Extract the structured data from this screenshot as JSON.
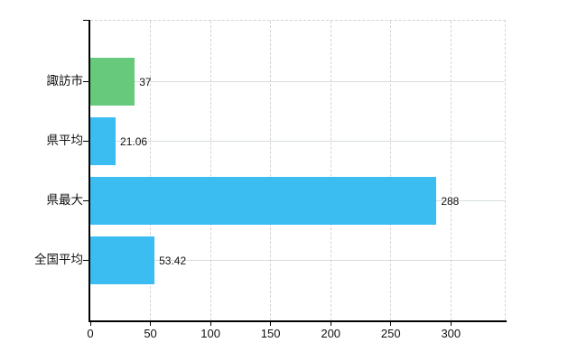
{
  "chart_data": {
    "type": "bar",
    "orientation": "horizontal",
    "title": "",
    "xlabel": "",
    "ylabel": "",
    "categories": [
      "諏訪市",
      "県平均",
      "県最大",
      "全国平均"
    ],
    "values": [
      37,
      21.06,
      288,
      53.42
    ],
    "value_labels": [
      "37",
      "21.06",
      "288",
      "53.42"
    ],
    "bar_colors": [
      "#67c97c",
      "#3bbdf2",
      "#3bbdf2",
      "#3bbdf2"
    ],
    "xlim": [
      0,
      345.6
    ],
    "x_ticks": [
      0,
      50,
      100,
      150,
      200,
      250,
      300
    ],
    "grid": true,
    "legend": false
  },
  "colors": {
    "background": "#ffffff",
    "axis": "#000000",
    "grid_vertical": "#d8d0da",
    "grid_horizontal": "#d5ded5",
    "plot_border": "#d8d0da",
    "tick_label": "#111111",
    "value_label": "#111111"
  }
}
